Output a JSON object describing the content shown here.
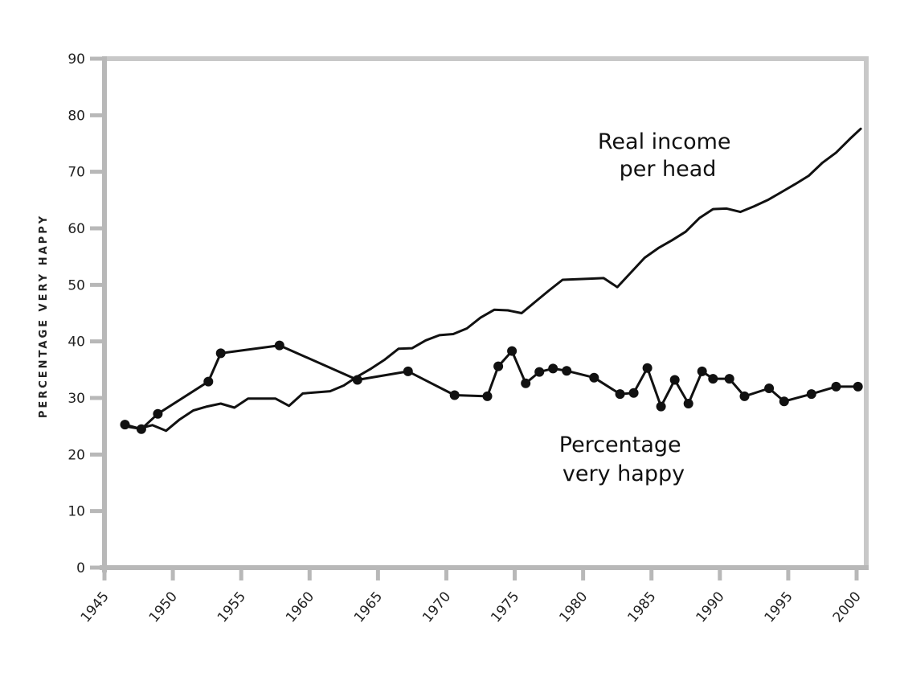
{
  "chart_data": {
    "type": "line",
    "ylabel": "PERCENTAGE VERY HAPPY",
    "xlabel": "",
    "xlim": [
      1945,
      2000
    ],
    "ylim": [
      0,
      90
    ],
    "grid": false,
    "x_ticks": [
      "1945",
      "1950",
      "1955",
      "1960",
      "1965",
      "1970",
      "1975",
      "1980",
      "1985",
      "1990",
      "1995",
      "2000"
    ],
    "y_ticks": [
      "0",
      "10",
      "20",
      "30",
      "40",
      "50",
      "60",
      "70",
      "80",
      "90"
    ],
    "series": [
      {
        "name": "Real income per head",
        "label_lines": [
          "Real income",
          "per head"
        ],
        "markers": false,
        "points": [
          [
            1946.5,
            25
          ],
          [
            1947.5,
            24.6
          ],
          [
            1948.5,
            25.2
          ],
          [
            1949.5,
            24.2
          ],
          [
            1950.5,
            26.2
          ],
          [
            1951.5,
            27.8
          ],
          [
            1952.5,
            28.5
          ],
          [
            1953.5,
            29
          ],
          [
            1954.5,
            28.3
          ],
          [
            1955.5,
            29.9
          ],
          [
            1957.5,
            29.9
          ],
          [
            1958.5,
            28.6
          ],
          [
            1959.5,
            30.8
          ],
          [
            1961.5,
            31.2
          ],
          [
            1962.5,
            32.2
          ],
          [
            1963.5,
            33.8
          ],
          [
            1964.5,
            35.2
          ],
          [
            1965.5,
            36.8
          ],
          [
            1966.5,
            38.7
          ],
          [
            1967.5,
            38.8
          ],
          [
            1968.5,
            40.2
          ],
          [
            1969.5,
            41.1
          ],
          [
            1970.5,
            41.3
          ],
          [
            1971.5,
            42.3
          ],
          [
            1972.5,
            44.2
          ],
          [
            1973.5,
            45.6
          ],
          [
            1974.5,
            45.5
          ],
          [
            1975.5,
            45
          ],
          [
            1976.5,
            47
          ],
          [
            1977.5,
            49
          ],
          [
            1978.5,
            50.9
          ],
          [
            1980.5,
            51.1
          ],
          [
            1981.5,
            51.2
          ],
          [
            1982.5,
            49.6
          ],
          [
            1983.5,
            52.2
          ],
          [
            1984.5,
            54.8
          ],
          [
            1985.5,
            56.5
          ],
          [
            1986.5,
            57.9
          ],
          [
            1987.5,
            59.4
          ],
          [
            1988.5,
            61.8
          ],
          [
            1989.5,
            63.4
          ],
          [
            1990.5,
            63.5
          ],
          [
            1991.5,
            62.9
          ],
          [
            1992.5,
            63.9
          ],
          [
            1993.5,
            65
          ],
          [
            1994.5,
            66.4
          ],
          [
            1995.5,
            67.8
          ],
          [
            1996.5,
            69.3
          ],
          [
            1997.5,
            71.6
          ],
          [
            1998.5,
            73.4
          ],
          [
            1999.5,
            75.8
          ],
          [
            2000.3,
            77.6
          ]
        ]
      },
      {
        "name": "Percentage very happy",
        "label_lines": [
          "Percentage",
          "very happy"
        ],
        "markers": true,
        "points": [
          [
            1946.5,
            25.3
          ],
          [
            1947.7,
            24.5
          ],
          [
            1948.9,
            27.2
          ],
          [
            1952.6,
            32.9
          ],
          [
            1953.5,
            37.9
          ],
          [
            1957.8,
            39.3
          ],
          [
            1963.5,
            33.2
          ],
          [
            1967.2,
            34.7
          ],
          [
            1970.6,
            30.5
          ],
          [
            1973,
            30.3
          ],
          [
            1973.8,
            35.6
          ],
          [
            1974.8,
            38.3
          ],
          [
            1975.8,
            32.6
          ],
          [
            1976.8,
            34.6
          ],
          [
            1977.8,
            35.2
          ],
          [
            1978.8,
            34.8
          ],
          [
            1980.8,
            33.6
          ],
          [
            1982.7,
            30.7
          ],
          [
            1983.7,
            30.9
          ],
          [
            1984.7,
            35.3
          ],
          [
            1985.7,
            28.5
          ],
          [
            1986.7,
            33.2
          ],
          [
            1987.7,
            29
          ],
          [
            1988.7,
            34.7
          ],
          [
            1989.5,
            33.4
          ],
          [
            1990.7,
            33.4
          ],
          [
            1991.8,
            30.3
          ],
          [
            1993.6,
            31.7
          ],
          [
            1994.7,
            29.4
          ],
          [
            1996.7,
            30.7
          ],
          [
            1998.5,
            32
          ],
          [
            2000.1,
            32
          ]
        ]
      }
    ]
  }
}
